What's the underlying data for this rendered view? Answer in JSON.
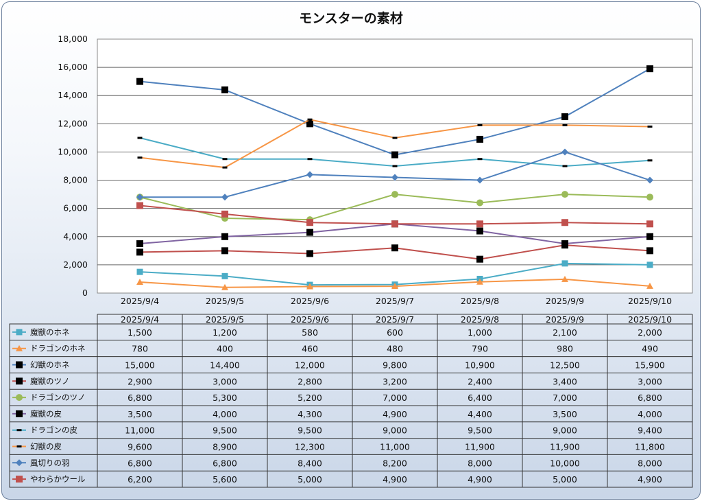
{
  "chart_data": {
    "type": "line",
    "title": "モンスターの素材",
    "categories": [
      "2025/9/4",
      "2025/9/5",
      "2025/9/6",
      "2025/9/7",
      "2025/9/8",
      "2025/9/9",
      "2025/9/10"
    ],
    "ylim": [
      0,
      18000
    ],
    "yticks": [
      "0",
      "2,000",
      "4,000",
      "6,000",
      "8,000",
      "10,000",
      "12,000",
      "14,000",
      "16,000",
      "18,000"
    ],
    "grid": true,
    "legend": "data-table-below",
    "series": [
      {
        "name": "魔獣のホネ",
        "color": "#4bacc6",
        "marker": "square",
        "values": [
          1500,
          1200,
          580,
          600,
          1000,
          2100,
          2000
        ],
        "labels": [
          "1,500",
          "1,200",
          "580",
          "600",
          "1,000",
          "2,100",
          "2,000"
        ]
      },
      {
        "name": "ドラゴンのホネ",
        "color": "#f79646",
        "marker": "triangle",
        "values": [
          780,
          400,
          460,
          480,
          790,
          980,
          490
        ],
        "labels": [
          "780",
          "400",
          "460",
          "480",
          "790",
          "980",
          "490"
        ]
      },
      {
        "name": "幻獣のホネ",
        "color": "#4f81bd",
        "marker": "blacksquare",
        "values": [
          15000,
          14400,
          12000,
          9800,
          10900,
          12500,
          15900
        ],
        "labels": [
          "15,000",
          "14,400",
          "12,000",
          "9,800",
          "10,900",
          "12,500",
          "15,900"
        ]
      },
      {
        "name": "魔獣のツノ",
        "color": "#c0504d",
        "marker": "blacksquare",
        "values": [
          2900,
          3000,
          2800,
          3200,
          2400,
          3400,
          3000
        ],
        "labels": [
          "2,900",
          "3,000",
          "2,800",
          "3,200",
          "2,400",
          "3,400",
          "3,000"
        ]
      },
      {
        "name": "ドラゴンのツノ",
        "color": "#9bbb59",
        "marker": "circle",
        "values": [
          6800,
          5300,
          5200,
          7000,
          6400,
          7000,
          6800
        ],
        "labels": [
          "6,800",
          "5,300",
          "5,200",
          "7,000",
          "6,400",
          "7,000",
          "6,800"
        ]
      },
      {
        "name": "魔獣の皮",
        "color": "#8064a2",
        "marker": "blacksquare",
        "values": [
          3500,
          4000,
          4300,
          4900,
          4400,
          3500,
          4000
        ],
        "labels": [
          "3,500",
          "4,000",
          "4,300",
          "4,900",
          "4,400",
          "3,500",
          "4,000"
        ]
      },
      {
        "name": "ドラゴンの皮",
        "color": "#4bacc6",
        "marker": "dash",
        "values": [
          11000,
          9500,
          9500,
          9000,
          9500,
          9000,
          9400
        ],
        "labels": [
          "11,000",
          "9,500",
          "9,500",
          "9,000",
          "9,500",
          "9,000",
          "9,400"
        ]
      },
      {
        "name": "幻獣の皮",
        "color": "#f79646",
        "marker": "dash",
        "values": [
          9600,
          8900,
          12300,
          11000,
          11900,
          11900,
          11800
        ],
        "labels": [
          "9,600",
          "8,900",
          "12,300",
          "11,000",
          "11,900",
          "11,900",
          "11,800"
        ]
      },
      {
        "name": "風切りの羽",
        "color": "#4f81bd",
        "marker": "diamond",
        "values": [
          6800,
          6800,
          8400,
          8200,
          8000,
          10000,
          8000
        ],
        "labels": [
          "6,800",
          "6,800",
          "8,400",
          "8,200",
          "8,000",
          "10,000",
          "8,000"
        ]
      },
      {
        "name": "やわらかウール",
        "color": "#c0504d",
        "marker": "redsquare",
        "values": [
          6200,
          5600,
          5000,
          4900,
          4900,
          5000,
          4900
        ],
        "labels": [
          "6,200",
          "5,600",
          "5,000",
          "4,900",
          "4,900",
          "5,000",
          "4,900"
        ]
      }
    ]
  }
}
